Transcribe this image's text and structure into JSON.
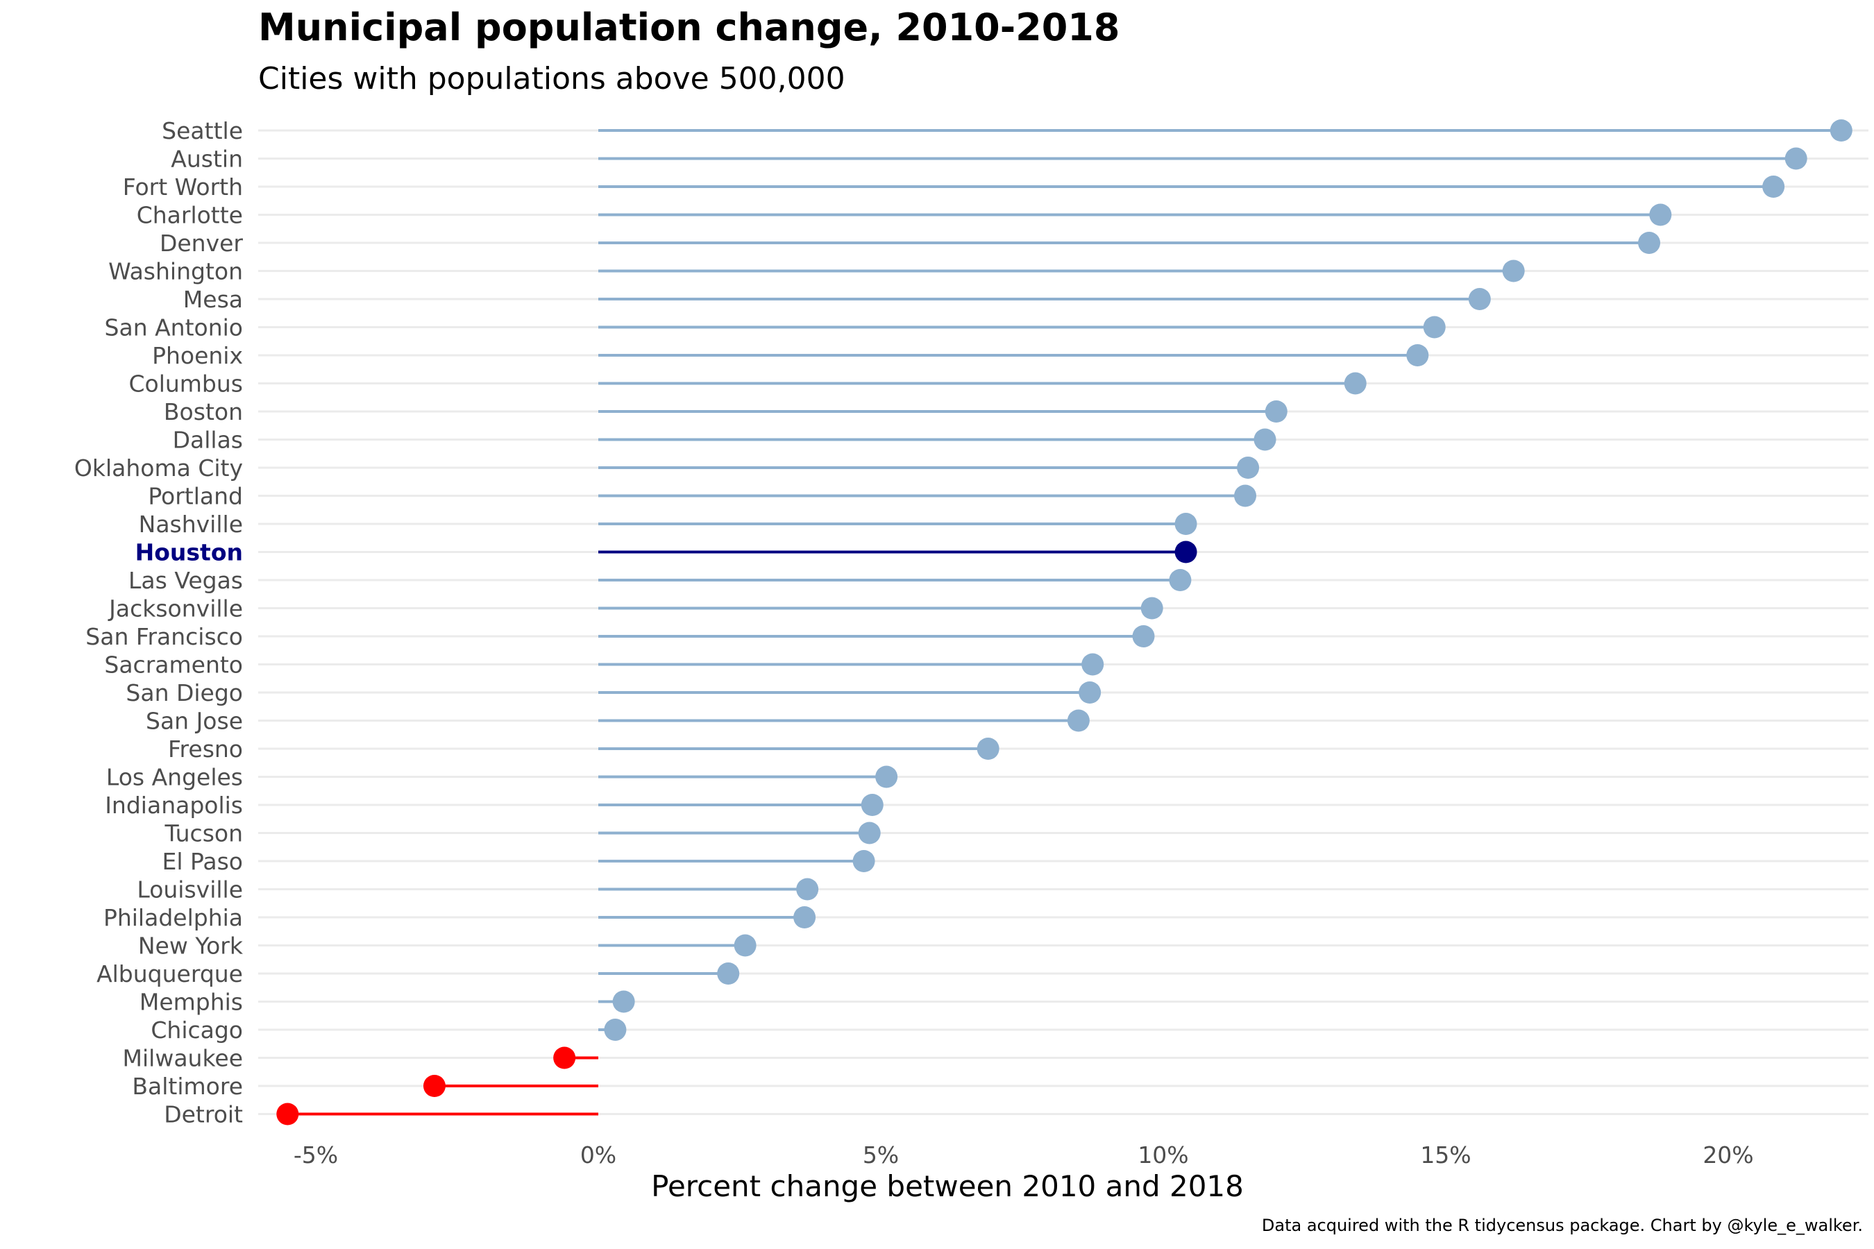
{
  "chart_data": {
    "type": "lollipop",
    "title": "Municipal population change, 2010-2018",
    "subtitle": "Cities with populations above 500,000",
    "xlabel": "Percent change between 2010 and 2018",
    "ylabel": "",
    "caption": "Data acquired with the R tidycensus package. Chart by @kyle_e_walker.",
    "xlim": [
      -6.0,
      22.5
    ],
    "x_ticks": [
      -5,
      0,
      5,
      10,
      15,
      20
    ],
    "x_tick_labels": [
      "-5%",
      "0%",
      "5%",
      "10%",
      "15%",
      "20%"
    ],
    "grid": "horizontal major",
    "highlight": "Houston",
    "colors": {
      "positive": "#8eb0cf",
      "negative": "#ff0000",
      "highlight": "#000080",
      "gridline": "#ebebeb"
    },
    "categories": [
      "Seattle",
      "Austin",
      "Fort Worth",
      "Charlotte",
      "Denver",
      "Washington",
      "Mesa",
      "San Antonio",
      "Phoenix",
      "Columbus",
      "Boston",
      "Dallas",
      "Oklahoma City",
      "Portland",
      "Nashville",
      "Houston",
      "Las Vegas",
      "Jacksonville",
      "San Francisco",
      "Sacramento",
      "San Diego",
      "San Jose",
      "Fresno",
      "Los Angeles",
      "Indianapolis",
      "Tucson",
      "El Paso",
      "Louisville",
      "Philadelphia",
      "New York",
      "Albuquerque",
      "Memphis",
      "Chicago",
      "Milwaukee",
      "Baltimore",
      "Detroit"
    ],
    "values": [
      22.0,
      21.2,
      20.8,
      18.8,
      18.6,
      16.2,
      15.6,
      14.8,
      14.5,
      13.4,
      12.0,
      11.8,
      11.5,
      11.45,
      10.4,
      10.4,
      10.3,
      9.8,
      9.65,
      8.75,
      8.7,
      8.5,
      6.9,
      5.1,
      4.85,
      4.8,
      4.7,
      3.7,
      3.65,
      2.6,
      2.3,
      0.45,
      0.3,
      -0.6,
      -2.9,
      -5.5
    ]
  }
}
